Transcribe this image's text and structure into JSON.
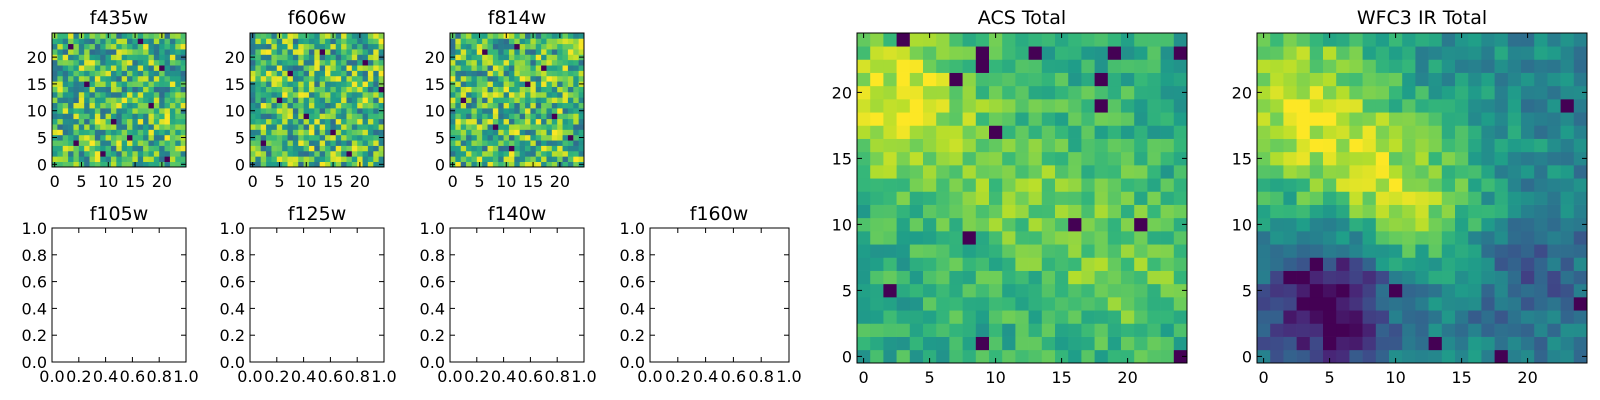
{
  "figure": {
    "colormap": "viridis",
    "colors": {
      "low": "#440154",
      "mid": "#21918c",
      "high": "#fde725",
      "background": "#ffffff",
      "axes": "#000000"
    }
  },
  "chart_data": [
    {
      "type": "heatmap",
      "id": "f435w",
      "title": "f435w",
      "grid": [
        25,
        25
      ],
      "xlim": [
        -0.5,
        24.5
      ],
      "ylim": [
        -0.5,
        24.5
      ],
      "xticks": [
        "0",
        "5",
        "10",
        "15",
        "20"
      ],
      "yticks": [
        "0",
        "5",
        "10",
        "15",
        "20"
      ],
      "xtick_values": [
        0,
        5,
        10,
        15,
        20
      ],
      "ytick_values": [
        0,
        5,
        10,
        15,
        20
      ],
      "pattern": "noise",
      "seed": 11,
      "dark_pixels": [
        [
          9,
          2
        ],
        [
          21,
          1
        ],
        [
          3,
          22
        ],
        [
          16,
          23
        ],
        [
          6,
          15
        ],
        [
          14,
          5
        ],
        [
          20,
          18
        ],
        [
          11,
          8
        ],
        [
          4,
          4
        ],
        [
          18,
          11
        ]
      ]
    },
    {
      "type": "heatmap",
      "id": "f606w",
      "title": "f606w",
      "grid": [
        25,
        25
      ],
      "xlim": [
        -0.5,
        24.5
      ],
      "ylim": [
        -0.5,
        24.5
      ],
      "xticks": [
        "0",
        "5",
        "10",
        "15",
        "20"
      ],
      "yticks": [
        "0",
        "5",
        "10",
        "15",
        "20"
      ],
      "xtick_values": [
        0,
        5,
        10,
        15,
        20
      ],
      "ytick_values": [
        0,
        5,
        10,
        15,
        20
      ],
      "pattern": "noise",
      "seed": 23,
      "dark_pixels": [
        [
          13,
          21
        ],
        [
          2,
          4
        ],
        [
          10,
          9
        ],
        [
          24,
          14
        ],
        [
          7,
          17
        ],
        [
          18,
          2
        ],
        [
          5,
          12
        ],
        [
          15,
          6
        ],
        [
          21,
          19
        ]
      ]
    },
    {
      "type": "heatmap",
      "id": "f814w",
      "title": "f814w",
      "grid": [
        25,
        25
      ],
      "xlim": [
        -0.5,
        24.5
      ],
      "ylim": [
        -0.5,
        24.5
      ],
      "xticks": [
        "0",
        "5",
        "10",
        "15",
        "20"
      ],
      "yticks": [
        "0",
        "5",
        "10",
        "15",
        "20"
      ],
      "xtick_values": [
        0,
        5,
        10,
        15,
        20
      ],
      "ytick_values": [
        0,
        5,
        10,
        15,
        20
      ],
      "pattern": "noise",
      "seed": 37,
      "dark_pixels": [
        [
          14,
          15
        ],
        [
          6,
          21
        ],
        [
          11,
          3
        ],
        [
          19,
          9
        ],
        [
          2,
          12
        ],
        [
          22,
          5
        ],
        [
          8,
          7
        ],
        [
          17,
          18
        ],
        [
          12,
          22
        ]
      ]
    },
    {
      "type": "line",
      "id": "f105w",
      "title": "f105w",
      "series": [],
      "xlim": [
        0.0,
        1.0
      ],
      "ylim": [
        0.0,
        1.0
      ],
      "xticks": [
        "0.0",
        "0.2",
        "0.4",
        "0.6",
        "0.8",
        "1.0"
      ],
      "yticks": [
        "0.0",
        "0.2",
        "0.4",
        "0.6",
        "0.8",
        "1.0"
      ],
      "xtick_values": [
        0.0,
        0.2,
        0.4,
        0.6,
        0.8,
        1.0
      ],
      "ytick_values": [
        0.0,
        0.2,
        0.4,
        0.6,
        0.8,
        1.0
      ]
    },
    {
      "type": "line",
      "id": "f125w",
      "title": "f125w",
      "series": [],
      "xlim": [
        0.0,
        1.0
      ],
      "ylim": [
        0.0,
        1.0
      ],
      "xticks": [
        "0.0",
        "0.2",
        "0.4",
        "0.6",
        "0.8",
        "1.0"
      ],
      "yticks": [
        "0.0",
        "0.2",
        "0.4",
        "0.6",
        "0.8",
        "1.0"
      ],
      "xtick_values": [
        0.0,
        0.2,
        0.4,
        0.6,
        0.8,
        1.0
      ],
      "ytick_values": [
        0.0,
        0.2,
        0.4,
        0.6,
        0.8,
        1.0
      ]
    },
    {
      "type": "line",
      "id": "f140w",
      "title": "f140w",
      "series": [],
      "xlim": [
        0.0,
        1.0
      ],
      "ylim": [
        0.0,
        1.0
      ],
      "xticks": [
        "0.0",
        "0.2",
        "0.4",
        "0.6",
        "0.8",
        "1.0"
      ],
      "yticks": [
        "0.0",
        "0.2",
        "0.4",
        "0.6",
        "0.8",
        "1.0"
      ],
      "xtick_values": [
        0.0,
        0.2,
        0.4,
        0.6,
        0.8,
        1.0
      ],
      "ytick_values": [
        0.0,
        0.2,
        0.4,
        0.6,
        0.8,
        1.0
      ]
    },
    {
      "type": "line",
      "id": "f160w",
      "title": "f160w",
      "series": [],
      "xlim": [
        0.0,
        1.0
      ],
      "ylim": [
        0.0,
        1.0
      ],
      "xticks": [
        "0.0",
        "0.2",
        "0.4",
        "0.6",
        "0.8",
        "1.0"
      ],
      "yticks": [
        "0.0",
        "0.2",
        "0.4",
        "0.6",
        "0.8",
        "1.0"
      ],
      "xtick_values": [
        0.0,
        0.2,
        0.4,
        0.6,
        0.8,
        1.0
      ],
      "ytick_values": [
        0.0,
        0.2,
        0.4,
        0.6,
        0.8,
        1.0
      ]
    },
    {
      "type": "heatmap",
      "id": "acs-total",
      "title": "ACS Total",
      "grid": [
        25,
        25
      ],
      "xlim": [
        -0.5,
        24.5
      ],
      "ylim": [
        -0.5,
        24.5
      ],
      "xticks": [
        "0",
        "5",
        "10",
        "15",
        "20"
      ],
      "yticks": [
        "0",
        "5",
        "10",
        "15",
        "20"
      ],
      "xtick_values": [
        0,
        5,
        10,
        15,
        20
      ],
      "ytick_values": [
        0,
        5,
        10,
        15,
        20
      ],
      "pattern": "smooth",
      "seed": 53,
      "blobs": [
        [
          3.0,
          19.0,
          4.0,
          0.35
        ],
        [
          13.0,
          12.0,
          5.0,
          0.15
        ],
        [
          20.0,
          6.0,
          3.5,
          0.15
        ]
      ],
      "dark_pixels": [
        [
          3,
          24
        ],
        [
          9,
          23
        ],
        [
          9,
          22
        ],
        [
          19,
          23
        ],
        [
          18,
          21
        ],
        [
          13,
          23
        ],
        [
          7,
          21
        ],
        [
          24,
          23
        ],
        [
          18,
          19
        ],
        [
          10,
          17
        ],
        [
          16,
          10
        ],
        [
          21,
          10
        ],
        [
          8,
          9
        ],
        [
          9,
          1
        ],
        [
          24,
          0
        ],
        [
          2,
          5
        ]
      ]
    },
    {
      "type": "heatmap",
      "id": "wfc3-ir-total",
      "title": "WFC3 IR Total",
      "grid": [
        25,
        25
      ],
      "xlim": [
        -0.5,
        24.5
      ],
      "ylim": [
        -0.5,
        24.5
      ],
      "xticks": [
        "0",
        "5",
        "10",
        "15",
        "20"
      ],
      "yticks": [
        "0",
        "5",
        "10",
        "15",
        "20"
      ],
      "xtick_values": [
        0,
        5,
        10,
        15,
        20
      ],
      "ytick_values": [
        0,
        5,
        10,
        15,
        20
      ],
      "pattern": "smooth",
      "seed": 71,
      "base": 0.48,
      "blobs": [
        [
          2.5,
          19.0,
          5.0,
          0.42
        ],
        [
          12.0,
          11.5,
          4.0,
          0.32
        ],
        [
          7.0,
          15.0,
          4.0,
          0.12
        ],
        [
          5.0,
          4.0,
          3.5,
          -0.55
        ],
        [
          20.0,
          6.0,
          4.0,
          -0.18
        ]
      ],
      "dark_pixels": [
        [
          2,
          6
        ],
        [
          5,
          4
        ],
        [
          5,
          3
        ],
        [
          6,
          5
        ],
        [
          4,
          7
        ],
        [
          10,
          5
        ],
        [
          13,
          1
        ],
        [
          18,
          0
        ],
        [
          23,
          19
        ],
        [
          24,
          4
        ]
      ]
    }
  ]
}
